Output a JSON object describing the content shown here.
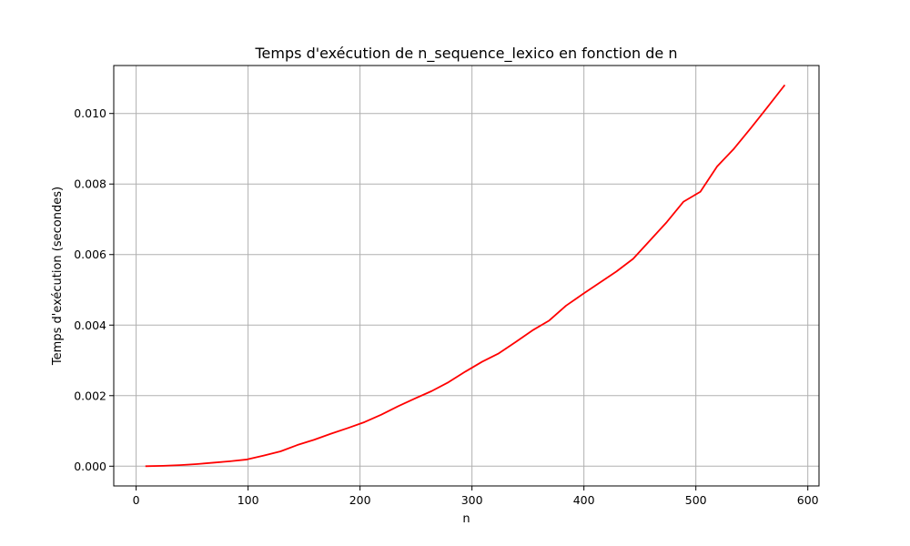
{
  "chart_data": {
    "type": "line",
    "title": "Temps d'exécution de n_sequence_lexico en fonction de n",
    "xlabel": "n",
    "ylabel": "Temps d'exécution (secondes)",
    "xlim": [
      -20,
      610
    ],
    "ylim": [
      -0.00056,
      0.01136
    ],
    "xticks": [
      0,
      100,
      200,
      300,
      400,
      500,
      600
    ],
    "xtick_labels": [
      "0",
      "100",
      "200",
      "300",
      "400",
      "500",
      "600"
    ],
    "yticks": [
      0.0,
      0.002,
      0.004,
      0.006,
      0.008,
      0.01
    ],
    "ytick_labels": [
      "0.000",
      "0.002",
      "0.004",
      "0.006",
      "0.008",
      "0.010"
    ],
    "grid": true,
    "series": [
      {
        "color": "#ff0000",
        "x": [
          9,
          24,
          39,
          54,
          69,
          84,
          99,
          114,
          129,
          144,
          159,
          174,
          189,
          204,
          219,
          234,
          249,
          264,
          279,
          294,
          309,
          324,
          339,
          354,
          369,
          384,
          399,
          414,
          429,
          444,
          459,
          474,
          489,
          504,
          519,
          534,
          549,
          564,
          579
        ],
        "y": [
          0.0,
          1e-05,
          3e-05,
          6e-05,
          0.0001,
          0.00014,
          0.00019,
          0.0003,
          0.00042,
          0.0006,
          0.00075,
          0.00092,
          0.00108,
          0.00125,
          0.00146,
          0.0017,
          0.00192,
          0.00213,
          0.00238,
          0.00268,
          0.00296,
          0.0032,
          0.00352,
          0.00385,
          0.00413,
          0.00455,
          0.00488,
          0.0052,
          0.00552,
          0.00588,
          0.0064,
          0.00692,
          0.0075,
          0.00778,
          0.0085,
          0.009,
          0.00958,
          0.01018,
          0.01079
        ]
      }
    ]
  }
}
